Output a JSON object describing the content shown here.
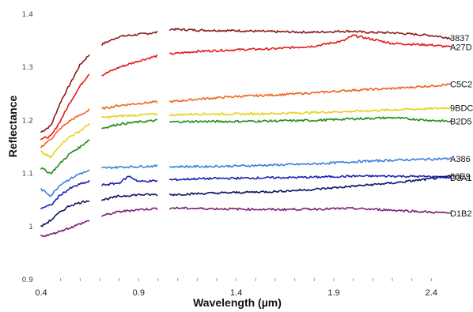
{
  "chart_data": {
    "type": "line",
    "title": "",
    "xlabel": "Wavelength (µm)",
    "ylabel": "Reflectance",
    "xlim": [
      0.4,
      2.5
    ],
    "ylim": [
      0.9,
      1.4
    ],
    "x_ticks": [
      "0.4",
      "0.9",
      "1.4",
      "1.9",
      "2.4"
    ],
    "y_ticks": [
      "0.9",
      "1",
      "1.1",
      "1.2",
      "1.3",
      "1.4"
    ],
    "grid": false,
    "gaps": [
      [
        0.65,
        0.71
      ],
      [
        1.0,
        1.06
      ]
    ],
    "series": [
      {
        "name": "3837",
        "color": "#8b1a1a",
        "x": [
          0.4,
          0.45,
          0.5,
          0.55,
          0.6,
          0.65,
          0.71,
          0.8,
          0.9,
          1.0,
          1.06,
          1.2,
          1.4,
          1.6,
          1.8,
          1.95,
          2.0,
          2.05,
          2.2,
          2.4,
          2.5
        ],
        "y": [
          1.178,
          1.19,
          1.235,
          1.27,
          1.305,
          1.325,
          1.343,
          1.358,
          1.362,
          1.366,
          1.372,
          1.37,
          1.369,
          1.367,
          1.366,
          1.368,
          1.368,
          1.366,
          1.365,
          1.36,
          1.355
        ]
      },
      {
        "name": "A27D",
        "color": "#e31a1c",
        "x": [
          0.4,
          0.45,
          0.5,
          0.55,
          0.6,
          0.65,
          0.71,
          0.8,
          0.9,
          1.0,
          1.06,
          1.2,
          1.4,
          1.6,
          1.8,
          1.95,
          2.0,
          2.2,
          2.4,
          2.5
        ],
        "y": [
          1.165,
          1.17,
          1.2,
          1.235,
          1.265,
          1.29,
          1.285,
          1.3,
          1.312,
          1.322,
          1.325,
          1.33,
          1.333,
          1.335,
          1.34,
          1.35,
          1.36,
          1.345,
          1.342,
          1.338
        ]
      },
      {
        "name": "C5C2",
        "color": "#f26522",
        "x": [
          0.4,
          0.45,
          0.5,
          0.55,
          0.6,
          0.65,
          0.71,
          0.8,
          0.9,
          1.0,
          1.06,
          1.2,
          1.4,
          1.6,
          1.8,
          2.0,
          2.2,
          2.4,
          2.5
        ],
        "y": [
          1.15,
          1.165,
          1.185,
          1.2,
          1.21,
          1.22,
          1.222,
          1.228,
          1.232,
          1.235,
          1.235,
          1.24,
          1.245,
          1.248,
          1.252,
          1.257,
          1.26,
          1.265,
          1.268
        ]
      },
      {
        "name": "9BDC",
        "color": "#e6d21e",
        "x": [
          0.4,
          0.45,
          0.5,
          0.55,
          0.6,
          0.65,
          0.71,
          0.8,
          0.9,
          1.0,
          1.06,
          1.2,
          1.4,
          1.6,
          1.8,
          2.0,
          2.2,
          2.4,
          2.5
        ],
        "y": [
          1.14,
          1.13,
          1.155,
          1.17,
          1.18,
          1.195,
          1.205,
          1.208,
          1.21,
          1.212,
          1.21,
          1.212,
          1.212,
          1.213,
          1.215,
          1.217,
          1.22,
          1.222,
          1.224
        ]
      },
      {
        "name": "B2D5",
        "color": "#238b1a",
        "x": [
          0.4,
          0.45,
          0.5,
          0.55,
          0.6,
          0.65,
          0.71,
          0.8,
          0.9,
          1.0,
          1.06,
          1.2,
          1.4,
          1.6,
          1.8,
          2.0,
          2.2,
          2.4,
          2.5
        ],
        "y": [
          1.11,
          1.1,
          1.12,
          1.138,
          1.15,
          1.165,
          1.185,
          1.193,
          1.197,
          1.2,
          1.197,
          1.198,
          1.198,
          1.199,
          1.2,
          1.203,
          1.205,
          1.2,
          1.198
        ]
      },
      {
        "name": "A386",
        "color": "#3a7fdc",
        "x": [
          0.4,
          0.45,
          0.5,
          0.55,
          0.6,
          0.65,
          0.71,
          0.8,
          0.9,
          1.0,
          1.06,
          1.2,
          1.4,
          1.6,
          1.8,
          2.0,
          2.2,
          2.4,
          2.5
        ],
        "y": [
          1.07,
          1.058,
          1.08,
          1.09,
          1.1,
          1.105,
          1.11,
          1.112,
          1.113,
          1.114,
          1.113,
          1.113,
          1.114,
          1.116,
          1.118,
          1.122,
          1.125,
          1.127,
          1.128
        ]
      },
      {
        "name": "D3A1",
        "color": "#1c1fb3",
        "x": [
          0.4,
          0.45,
          0.5,
          0.55,
          0.6,
          0.65,
          0.71,
          0.8,
          0.85,
          0.9,
          1.0,
          1.06,
          1.2,
          1.4,
          1.6,
          1.8,
          2.0,
          2.2,
          2.4,
          2.5
        ],
        "y": [
          1.035,
          1.04,
          1.06,
          1.072,
          1.08,
          1.085,
          1.078,
          1.082,
          1.095,
          1.085,
          1.086,
          1.088,
          1.09,
          1.091,
          1.092,
          1.093,
          1.095,
          1.095,
          1.094,
          1.092
        ]
      },
      {
        "name": "86E9",
        "color": "#0d1563",
        "x": [
          0.4,
          0.45,
          0.5,
          0.55,
          0.6,
          0.65,
          0.71,
          0.8,
          0.9,
          1.0,
          1.06,
          1.2,
          1.4,
          1.6,
          1.8,
          2.0,
          2.2,
          2.4,
          2.5
        ],
        "y": [
          1.0,
          1.012,
          1.028,
          1.04,
          1.045,
          1.05,
          1.05,
          1.057,
          1.06,
          1.06,
          1.06,
          1.062,
          1.064,
          1.066,
          1.07,
          1.076,
          1.082,
          1.09,
          1.095
        ]
      },
      {
        "name": "D1B2",
        "color": "#7b1f7b",
        "x": [
          0.4,
          0.45,
          0.5,
          0.55,
          0.6,
          0.65,
          0.71,
          0.8,
          0.9,
          1.0,
          1.06,
          1.2,
          1.4,
          1.6,
          1.8,
          2.0,
          2.2,
          2.4,
          2.5
        ],
        "y": [
          0.982,
          0.985,
          0.992,
          0.998,
          1.005,
          1.012,
          1.02,
          1.028,
          1.032,
          1.034,
          1.035,
          1.034,
          1.033,
          1.032,
          1.033,
          1.034,
          1.031,
          1.027,
          1.025
        ]
      }
    ]
  }
}
